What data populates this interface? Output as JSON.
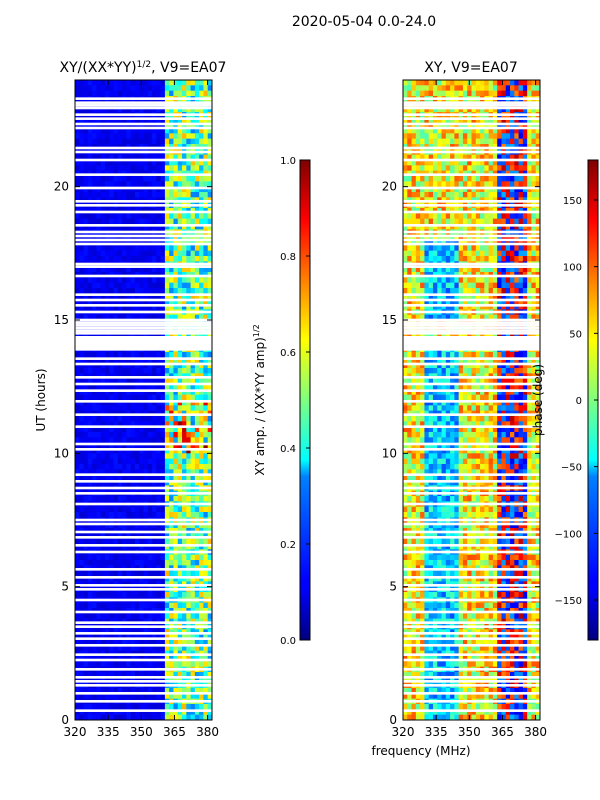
{
  "suptitle": "2020-05-04 0.0-24.0",
  "xlabel": "frequency (MHz)",
  "chart_data": [
    {
      "type": "heatmap",
      "title_main": "XY/(XX*YY)",
      "title_sup": "1/2",
      "title_suffix": ", V9=EA07",
      "xlabel": "frequency (MHz)",
      "ylabel": "UT (hours)",
      "xlim": [
        320,
        382
      ],
      "ylim": [
        0,
        24
      ],
      "xticks": [
        320,
        335,
        350,
        365,
        380
      ],
      "yticks": [
        0,
        5,
        10,
        15,
        20
      ],
      "colorbar": {
        "label_main": "XY amp. / (XX*YY amp)",
        "label_sup": "1/2",
        "range": [
          0.0,
          1.0
        ],
        "ticks": [
          "0.0",
          "0.2",
          "0.4",
          "0.6",
          "0.8",
          "1.0"
        ],
        "tick_values": [
          0.0,
          0.2,
          0.4,
          0.6,
          0.8,
          1.0
        ]
      },
      "colormap": "jet",
      "description_values": "low amplitude (~0.1) below 360 MHz, elevated (~0.3-0.8) in 362-382 MHz band; flagged time rows blank"
    },
    {
      "type": "heatmap",
      "title_main": "XY, V9=EA07",
      "xlabel": "frequency (MHz)",
      "ylabel": "",
      "xlim": [
        320,
        382
      ],
      "ylim": [
        0,
        24
      ],
      "xticks": [
        320,
        335,
        350,
        365,
        380
      ],
      "yticks": [
        0,
        5,
        10,
        15,
        20
      ],
      "colorbar": {
        "label_main": "phase (deg)",
        "range": [
          -180,
          180
        ],
        "ticks": [
          "150",
          "100",
          "50",
          "0",
          "−50",
          "−100",
          "−150"
        ],
        "tick_values": [
          150,
          100,
          50,
          0,
          -50,
          -100,
          -150
        ]
      },
      "colormap": "jet"
    }
  ],
  "flagged_rows_hours": [
    0.35,
    0.7,
    1.0,
    1.3,
    1.45,
    1.6,
    1.9,
    2.25,
    2.45,
    2.8,
    3.05,
    3.25,
    3.5,
    3.65,
    4.05,
    4.5,
    4.9,
    5.05,
    5.35,
    5.65,
    6.3,
    6.55,
    6.85,
    7.05,
    7.35,
    7.5,
    8.1,
    8.5,
    8.7,
    8.95,
    9.2,
    10.15,
    10.35,
    11.0,
    11.45,
    11.95,
    12.35,
    12.6,
    12.85,
    13.35,
    13.55,
    14.35,
    14.5,
    14.6,
    14.7,
    14.8,
    14.9,
    15.0,
    15.3,
    15.55,
    15.75,
    15.95,
    16.65,
    17.0,
    17.1,
    17.85,
    18.0,
    18.15,
    18.3,
    18.55,
    19.05,
    19.3,
    19.45,
    19.95,
    20.45,
    21.0,
    21.3,
    21.45,
    22.2,
    22.35,
    22.55,
    22.7,
    22.95,
    23.05,
    23.15,
    23.3
  ]
}
